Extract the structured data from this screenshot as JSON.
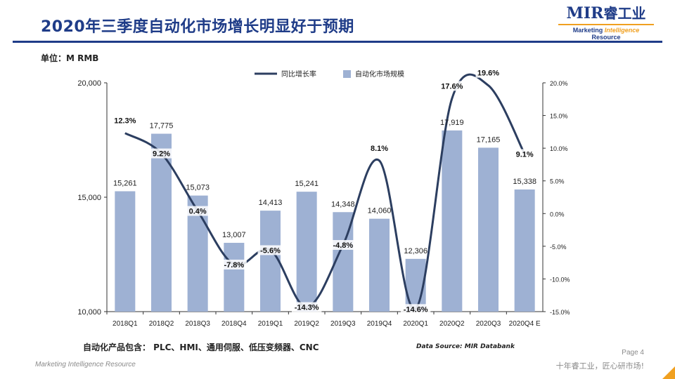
{
  "header": {
    "title": "2020年三季度自动化市场增长明显好于预期",
    "logo_main": "MIR",
    "logo_cjk": "睿工业",
    "logo_sub_before": "Marketing ",
    "logo_sub_em": "Intelligence",
    "logo_sub_after": " Resource"
  },
  "unit_label": "单位：M  RMB",
  "note": "自动化产品包含：  PLC、HMI、通用伺服、低压变频器、CNC",
  "source": "Data Source:    MIR Databank",
  "footer": {
    "left": "Marketing Intelligence Resource",
    "page": "Page 4",
    "slogan": "十年睿工业，匠心研市场!"
  },
  "colors": {
    "bar": "#9eb1d3",
    "line": "#2c3e60",
    "brand": "#1f3c88",
    "accent": "#f0a020"
  },
  "chart_data": {
    "type": "bar",
    "categories": [
      "2018Q1",
      "2018Q2",
      "2018Q3",
      "2018Q4",
      "2019Q1",
      "2019Q2",
      "2019Q3",
      "2019Q4",
      "2020Q1",
      "2020Q2",
      "2020Q3",
      "2020Q4 E"
    ],
    "series": [
      {
        "name": "自动化市场规模",
        "type": "bar",
        "axis": "left",
        "values": [
          15261,
          17775,
          15073,
          13007,
          14413,
          15241,
          14348,
          14060,
          12306,
          17919,
          17165,
          15338
        ],
        "labels": [
          "15,261",
          "17,775",
          "15,073",
          "13,007",
          "14,413",
          "15,241",
          "14,348",
          "14,060",
          "12,306",
          "17,919",
          "17,165",
          "15,338"
        ]
      },
      {
        "name": "同比增长率",
        "type": "line",
        "axis": "right",
        "values": [
          12.3,
          9.2,
          0.4,
          -7.8,
          -5.6,
          -14.3,
          -4.8,
          8.1,
          -14.6,
          17.6,
          19.6,
          9.1
        ],
        "labels": [
          "12.3%",
          "9.2%",
          "0.4%",
          "-7.8%",
          "-5.6%",
          "-14.3%",
          "-4.8%",
          "8.1%",
          "-14.6%",
          "17.6%",
          "19.6%",
          "9.1%"
        ]
      }
    ],
    "y_left": {
      "min": 10000,
      "max": 20000,
      "ticks": [
        10000,
        15000,
        20000
      ],
      "tick_labels": [
        "10,000",
        "15,000",
        "20,000"
      ]
    },
    "y_right": {
      "min": -15,
      "max": 20,
      "ticks": [
        -15,
        -10,
        -5,
        0,
        5,
        10,
        15,
        20
      ],
      "tick_labels": [
        "-15.0%",
        "-10.0%",
        "-5.0%",
        "0.0%",
        "5.0%",
        "10.0%",
        "15.0%",
        "20.0%"
      ]
    },
    "legend_position": "top-center",
    "grid": false
  }
}
